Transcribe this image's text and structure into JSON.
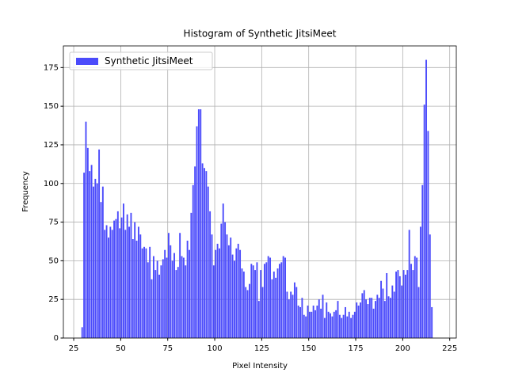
{
  "chart_data": {
    "type": "histogram",
    "title": "Histogram of Synthetic JitsiMeet",
    "x_label": "Pixel Intensity",
    "y_label": "Frequency",
    "bins": [
      29,
      30,
      31,
      32,
      33,
      34,
      35,
      36,
      37,
      38,
      39,
      40,
      41,
      42,
      43,
      44,
      45,
      46,
      47,
      48,
      49,
      50,
      51,
      52,
      53,
      54,
      55,
      56,
      57,
      58,
      59,
      60,
      61,
      62,
      63,
      64,
      65,
      66,
      67,
      68,
      69,
      70,
      71,
      72,
      73,
      74,
      75,
      76,
      77,
      78,
      79,
      80,
      81,
      82,
      83,
      84,
      85,
      86,
      87,
      88,
      89,
      90,
      91,
      92,
      93,
      94,
      95,
      96,
      97,
      98,
      99,
      100,
      101,
      102,
      103,
      104,
      105,
      106,
      107,
      108,
      109,
      110,
      111,
      112,
      113,
      114,
      115,
      116,
      117,
      118,
      119,
      120,
      121,
      122,
      123,
      124,
      125,
      126,
      127,
      128,
      129,
      130,
      131,
      132,
      133,
      134,
      135,
      136,
      137,
      138,
      139,
      140,
      141,
      142,
      143,
      144,
      145,
      146,
      147,
      148,
      149,
      150,
      151,
      152,
      153,
      154,
      155,
      156,
      157,
      158,
      159,
      160,
      161,
      162,
      163,
      164,
      165,
      166,
      167,
      168,
      169,
      170,
      171,
      172,
      173,
      174,
      175,
      176,
      177,
      178,
      179,
      180,
      181,
      182,
      183,
      184,
      185,
      186,
      187,
      188,
      189,
      190,
      191,
      192,
      193,
      194,
      195,
      196,
      197,
      198,
      199,
      200,
      201,
      202,
      203,
      204,
      205,
      206,
      207,
      208,
      209,
      210,
      211,
      212,
      213,
      214,
      215,
      216
    ],
    "series": [
      {
        "name": "Synthetic JitsiMeet",
        "color": "#4b4bfb",
        "values": [
          7,
          107,
          140,
          123,
          108,
          112,
          98,
          103,
          100,
          122,
          88,
          98,
          70,
          73,
          65,
          72,
          70,
          76,
          77,
          82,
          71,
          78,
          87,
          70,
          80,
          72,
          81,
          64,
          75,
          63,
          72,
          67,
          58,
          59,
          58,
          49,
          59,
          38,
          53,
          44,
          50,
          41,
          47,
          51,
          57,
          52,
          68,
          60,
          50,
          55,
          44,
          46,
          68,
          53,
          52,
          47,
          63,
          57,
          81,
          99,
          111,
          137,
          148,
          148,
          113,
          110,
          108,
          98,
          82,
          67,
          47,
          57,
          61,
          58,
          74,
          87,
          75,
          67,
          60,
          65,
          54,
          50,
          58,
          61,
          57,
          45,
          43,
          33,
          31,
          35,
          48,
          47,
          44,
          49,
          24,
          44,
          33,
          48,
          49,
          53,
          52,
          38,
          43,
          39,
          45,
          48,
          49,
          53,
          52,
          30,
          25,
          30,
          28,
          36,
          33,
          21,
          20,
          26,
          15,
          14,
          21,
          17,
          17,
          21,
          18,
          21,
          25,
          19,
          28,
          13,
          23,
          17,
          16,
          14,
          17,
          18,
          24,
          15,
          13,
          15,
          20,
          14,
          17,
          13,
          15,
          17,
          23,
          21,
          23,
          29,
          31,
          25,
          22,
          26,
          26,
          19,
          24,
          28,
          26,
          37,
          32,
          24,
          42,
          27,
          26,
          34,
          30,
          43,
          44,
          40,
          34,
          44,
          41,
          44,
          70,
          48,
          44,
          53,
          52,
          33,
          72,
          99,
          151,
          180,
          134,
          67,
          20
        ]
      }
    ],
    "xlim": [
      19.5,
      228.5
    ],
    "xticks": [
      25,
      50,
      75,
      100,
      125,
      150,
      175,
      200,
      225
    ],
    "ylim": [
      0,
      189
    ],
    "yticks": [
      0,
      25,
      50,
      75,
      100,
      125,
      150,
      175
    ],
    "grid": true,
    "legend": "upper left"
  }
}
